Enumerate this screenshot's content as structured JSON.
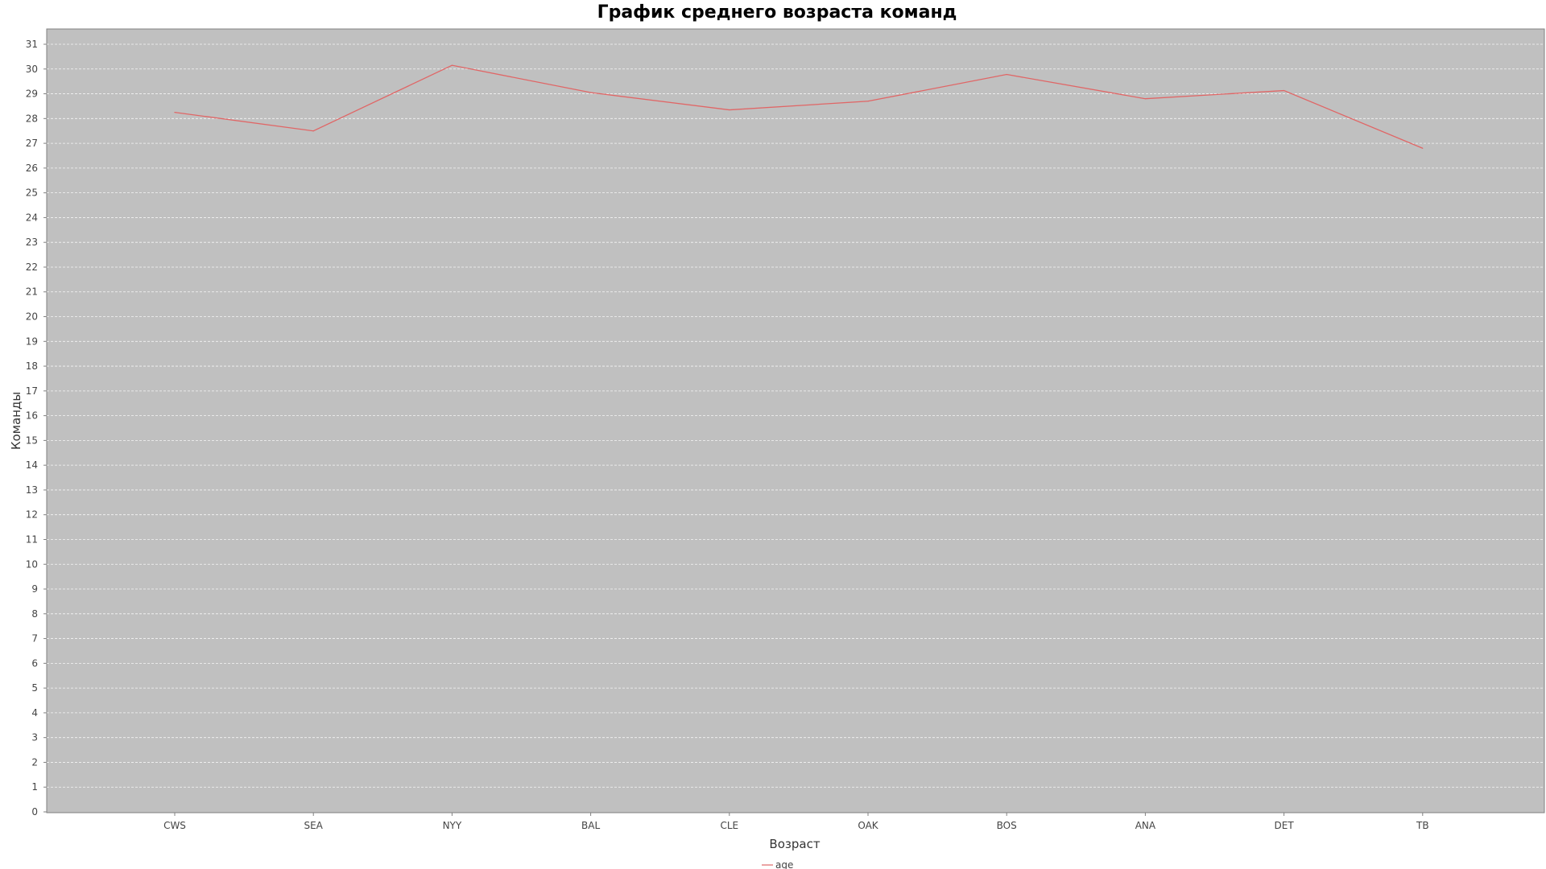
{
  "chart_data": {
    "type": "line",
    "title": "График среднего возраста команд",
    "xlabel": "Возраст",
    "ylabel": "Команды",
    "categories": [
      "CWS",
      "SEA",
      "NYY",
      "BAL",
      "CLE",
      "OAK",
      "BOS",
      "ANA",
      "DET",
      "TB"
    ],
    "series": [
      {
        "name": "age",
        "color": "#e06666",
        "values": [
          28.25,
          27.5,
          30.15,
          29.05,
          28.35,
          28.7,
          29.78,
          28.8,
          29.13,
          26.8
        ]
      }
    ],
    "ylim": [
      0,
      31
    ],
    "yticks": [
      "0",
      "1",
      "2",
      "3",
      "4",
      "5",
      "6",
      "7",
      "8",
      "9",
      "10",
      "11",
      "12",
      "13",
      "14",
      "15",
      "16",
      "17",
      "18",
      "19",
      "20",
      "21",
      "22",
      "23",
      "24",
      "25",
      "26",
      "27",
      "28",
      "29",
      "30",
      "31"
    ],
    "grid": true,
    "legend": "bottom-center",
    "plot_background": "#c0c0c0",
    "grid_color": "#ffffff",
    "axis_color": "#808080"
  }
}
